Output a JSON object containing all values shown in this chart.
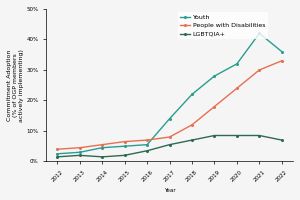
{
  "years": [
    2012,
    2013,
    2014,
    2015,
    2016,
    2017,
    2018,
    2019,
    2020,
    2021,
    2022
  ],
  "youth": [
    2.5,
    3.0,
    4.5,
    5.0,
    5.5,
    14.0,
    22.0,
    28.0,
    32.0,
    42.0,
    36.0
  ],
  "disabilities": [
    4.0,
    4.5,
    5.5,
    6.5,
    7.0,
    8.0,
    12.0,
    18.0,
    24.0,
    30.0,
    33.0
  ],
  "lgbtqia": [
    1.5,
    2.0,
    1.5,
    2.0,
    3.5,
    5.5,
    7.0,
    8.5,
    8.5,
    8.5,
    7.0
  ],
  "youth_color": "#2a9d8f",
  "disabilities_color": "#e76f51",
  "lgbtqia_color": "#2d6a4f",
  "youth_label": "Youth",
  "disabilities_label": "People with Disabilities",
  "lgbtqia_label": "LGBTQIA+",
  "xlabel": "Year",
  "ylabel": "Commitment Adoption\n(% of OGP members\nactively implementing)",
  "ylim": [
    0,
    50
  ],
  "yticks": [
    0,
    10,
    20,
    30,
    40,
    50
  ],
  "ytick_labels": [
    "0%",
    "10%",
    "20%",
    "30%",
    "40%",
    "50%"
  ],
  "background_color": "#f5f5f5",
  "title_fontsize": 6,
  "axis_fontsize": 4.5,
  "tick_fontsize": 4,
  "legend_fontsize": 4.5
}
